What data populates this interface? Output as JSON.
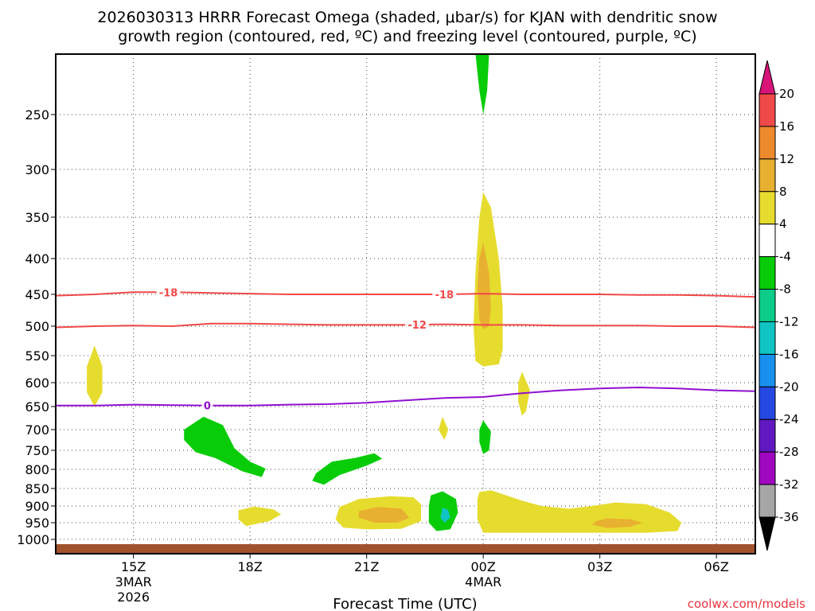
{
  "chart_data": {
    "type": "time-height cross section",
    "title_line1": "2026030313 HRRR Forecast Omega (shaded, μbar/s) for KJAN with dendritic snow",
    "title_line2": "growth region (contoured, red, ºC) and freezing level (contoured, purple, ºC)",
    "xlabel": "Forecast Time (UTC)",
    "credit": "coolwx.com/models",
    "x_ticks": [
      {
        "hour": 15,
        "label": "15Z",
        "sub1": "3MAR",
        "sub2": "2026"
      },
      {
        "hour": 18,
        "label": "18Z",
        "sub1": "",
        "sub2": ""
      },
      {
        "hour": 21,
        "label": "21Z",
        "sub1": "",
        "sub2": ""
      },
      {
        "hour": 24,
        "label": "00Z",
        "sub1": "4MAR",
        "sub2": ""
      },
      {
        "hour": 27,
        "label": "03Z",
        "sub1": "",
        "sub2": ""
      },
      {
        "hour": 30,
        "label": "06Z",
        "sub1": "",
        "sub2": ""
      }
    ],
    "x_range_hours": [
      13,
      31
    ],
    "y_axis": {
      "unit": "hPa",
      "range": [
        200,
        1030
      ],
      "ticks": [
        250,
        300,
        350,
        400,
        450,
        500,
        550,
        600,
        650,
        700,
        750,
        800,
        850,
        900,
        950,
        1000
      ]
    },
    "surface_pressure_hPa": 1010,
    "colorbar": {
      "levels": [
        20,
        16,
        12,
        8,
        4,
        -4,
        -8,
        -12,
        -16,
        -20,
        -24,
        -28,
        -32,
        -36
      ],
      "colors": [
        "#d81478",
        "#f04a48",
        "#ee8a2e",
        "#e8b030",
        "#e6dc2e",
        "#ffffff",
        "#08cc08",
        "#0ccc8a",
        "#10c4c4",
        "#1890ee",
        "#2448e0",
        "#6018c0",
        "#a008c0",
        "#a6a6a6",
        "#000000"
      ]
    },
    "colors": {
      "dgz": "#f04848",
      "freezing": "#9010d0",
      "surface": "#a0522d"
    },
    "contours": [
      {
        "name": "dgz-minus18",
        "label": "-18",
        "label_hours": [
          15.9,
          23.0
        ],
        "points": [
          [
            13,
            452
          ],
          [
            14,
            450
          ],
          [
            15,
            447
          ],
          [
            16,
            447
          ],
          [
            17,
            448
          ],
          [
            18,
            449
          ],
          [
            19,
            450
          ],
          [
            20,
            450
          ],
          [
            21,
            450
          ],
          [
            22,
            450
          ],
          [
            23,
            450
          ],
          [
            24,
            449
          ],
          [
            25,
            450
          ],
          [
            26,
            450
          ],
          [
            27,
            450
          ],
          [
            28,
            451
          ],
          [
            29,
            451
          ],
          [
            30,
            452
          ],
          [
            31,
            454
          ]
        ]
      },
      {
        "name": "dgz-minus12",
        "label": "-12",
        "label_hours": [
          22.3
        ],
        "points": [
          [
            13,
            502
          ],
          [
            14,
            500
          ],
          [
            15,
            499
          ],
          [
            16,
            500
          ],
          [
            16.5,
            498
          ],
          [
            17,
            496
          ],
          [
            18,
            496
          ],
          [
            19,
            497
          ],
          [
            20,
            498
          ],
          [
            21,
            498
          ],
          [
            22,
            498
          ],
          [
            23,
            497
          ],
          [
            24,
            498
          ],
          [
            25,
            498
          ],
          [
            26,
            499
          ],
          [
            27,
            499
          ],
          [
            28,
            499
          ],
          [
            29,
            500
          ],
          [
            30,
            500
          ],
          [
            31,
            502
          ]
        ]
      },
      {
        "name": "freezing-0",
        "label": "0",
        "label_hours": [
          16.9
        ],
        "points": [
          [
            13,
            648
          ],
          [
            14,
            648
          ],
          [
            15,
            646
          ],
          [
            16,
            647
          ],
          [
            17,
            648
          ],
          [
            18,
            648
          ],
          [
            19,
            646
          ],
          [
            20,
            645
          ],
          [
            21,
            642
          ],
          [
            22,
            637
          ],
          [
            23,
            632
          ],
          [
            24,
            630
          ],
          [
            25,
            622
          ],
          [
            26,
            616
          ],
          [
            27,
            612
          ],
          [
            28,
            610
          ],
          [
            29,
            612
          ],
          [
            30,
            616
          ],
          [
            31,
            618
          ]
        ]
      }
    ],
    "omega_regions": [
      {
        "name": "upper-green",
        "value": -6,
        "points": [
          [
            23.8,
            200
          ],
          [
            24.15,
            200
          ],
          [
            24.1,
            230
          ],
          [
            24.0,
            250
          ],
          [
            23.9,
            230
          ]
        ]
      },
      {
        "name": "upper-yellow-outer",
        "value": 6,
        "points": [
          [
            24.0,
            324
          ],
          [
            24.2,
            340
          ],
          [
            24.4,
            400
          ],
          [
            24.5,
            470
          ],
          [
            24.5,
            540
          ],
          [
            24.4,
            566
          ],
          [
            24.0,
            570
          ],
          [
            23.8,
            560
          ],
          [
            23.75,
            500
          ],
          [
            23.8,
            420
          ],
          [
            23.9,
            350
          ]
        ]
      },
      {
        "name": "upper-yellow-inner",
        "value": 10,
        "points": [
          [
            24.0,
            380
          ],
          [
            24.15,
            420
          ],
          [
            24.2,
            470
          ],
          [
            24.15,
            500
          ],
          [
            24.0,
            505
          ],
          [
            23.9,
            490
          ],
          [
            23.85,
            440
          ],
          [
            23.9,
            400
          ]
        ]
      },
      {
        "name": "left-yellow-small",
        "value": 5,
        "points": [
          [
            14.0,
            533
          ],
          [
            14.2,
            570
          ],
          [
            14.2,
            620
          ],
          [
            14.0,
            650
          ],
          [
            13.8,
            620
          ],
          [
            13.8,
            570
          ]
        ]
      },
      {
        "name": "mid-yellow-small",
        "value": 5,
        "points": [
          [
            25.0,
            580
          ],
          [
            25.2,
            615
          ],
          [
            25.1,
            660
          ],
          [
            25.0,
            670
          ],
          [
            24.9,
            640
          ],
          [
            24.9,
            600
          ]
        ]
      },
      {
        "name": "yellow-sliver",
        "value": 5,
        "points": [
          [
            22.95,
            672
          ],
          [
            23.1,
            700
          ],
          [
            23.0,
            725
          ],
          [
            22.85,
            700
          ]
        ]
      },
      {
        "name": "green-right-small",
        "value": -6,
        "points": [
          [
            24.0,
            680
          ],
          [
            24.2,
            705
          ],
          [
            24.15,
            750
          ],
          [
            24.0,
            760
          ],
          [
            23.9,
            730
          ],
          [
            23.9,
            700
          ]
        ]
      },
      {
        "name": "green-left-big",
        "value": -6,
        "points": [
          [
            16.3,
            700
          ],
          [
            16.8,
            672
          ],
          [
            17.3,
            690
          ],
          [
            17.6,
            745
          ],
          [
            18.0,
            780
          ],
          [
            18.4,
            798
          ],
          [
            18.3,
            820
          ],
          [
            17.8,
            805
          ],
          [
            17.1,
            770
          ],
          [
            16.6,
            755
          ],
          [
            16.3,
            725
          ]
        ]
      },
      {
        "name": "green-mid-big",
        "value": -6,
        "points": [
          [
            19.7,
            810
          ],
          [
            20.1,
            780
          ],
          [
            20.7,
            770
          ],
          [
            21.2,
            758
          ],
          [
            21.4,
            772
          ],
          [
            21.0,
            790
          ],
          [
            20.3,
            815
          ],
          [
            19.9,
            840
          ],
          [
            19.6,
            830
          ]
        ]
      },
      {
        "name": "yellow-18z",
        "value": 5,
        "points": [
          [
            17.7,
            913
          ],
          [
            18.1,
            902
          ],
          [
            18.6,
            910
          ],
          [
            18.8,
            925
          ],
          [
            18.5,
            945
          ],
          [
            17.9,
            960
          ],
          [
            17.7,
            940
          ]
        ]
      },
      {
        "name": "yellow-21z-outer",
        "value": 6,
        "points": [
          [
            20.3,
            903
          ],
          [
            20.8,
            880
          ],
          [
            21.6,
            872
          ],
          [
            22.2,
            875
          ],
          [
            22.4,
            895
          ],
          [
            22.4,
            945
          ],
          [
            21.9,
            968
          ],
          [
            21.0,
            970
          ],
          [
            20.4,
            965
          ],
          [
            20.2,
            940
          ]
        ]
      },
      {
        "name": "orange-21z-inner",
        "value": 10,
        "points": [
          [
            20.8,
            915
          ],
          [
            21.3,
            903
          ],
          [
            21.9,
            908
          ],
          [
            22.1,
            935
          ],
          [
            21.8,
            950
          ],
          [
            21.2,
            950
          ],
          [
            20.8,
            935
          ]
        ]
      },
      {
        "name": "green-2330",
        "value": -6,
        "points": [
          [
            22.65,
            870
          ],
          [
            22.95,
            858
          ],
          [
            23.3,
            880
          ],
          [
            23.35,
            920
          ],
          [
            23.15,
            970
          ],
          [
            22.8,
            975
          ],
          [
            22.6,
            950
          ],
          [
            22.6,
            900
          ]
        ]
      },
      {
        "name": "cyan-2330",
        "value": -13,
        "points": [
          [
            22.95,
            905
          ],
          [
            23.1,
            912
          ],
          [
            23.15,
            935
          ],
          [
            23.0,
            950
          ],
          [
            22.9,
            935
          ]
        ]
      },
      {
        "name": "yellow-right-big",
        "value": 6,
        "points": [
          [
            23.9,
            860
          ],
          [
            24.2,
            855
          ],
          [
            25.0,
            885
          ],
          [
            25.5,
            900
          ],
          [
            26.2,
            908
          ],
          [
            26.8,
            900
          ],
          [
            27.4,
            890
          ],
          [
            28.2,
            895
          ],
          [
            28.8,
            920
          ],
          [
            29.1,
            950
          ],
          [
            29.0,
            975
          ],
          [
            28.2,
            980
          ],
          [
            26.5,
            980
          ],
          [
            25.0,
            980
          ],
          [
            24.0,
            980
          ],
          [
            23.85,
            940
          ],
          [
            23.85,
            880
          ]
        ]
      },
      {
        "name": "orange-right-inner",
        "value": 10,
        "points": [
          [
            26.9,
            945
          ],
          [
            27.2,
            937
          ],
          [
            27.8,
            940
          ],
          [
            28.1,
            950
          ],
          [
            27.8,
            962
          ],
          [
            27.2,
            966
          ],
          [
            26.8,
            956
          ]
        ]
      }
    ]
  }
}
